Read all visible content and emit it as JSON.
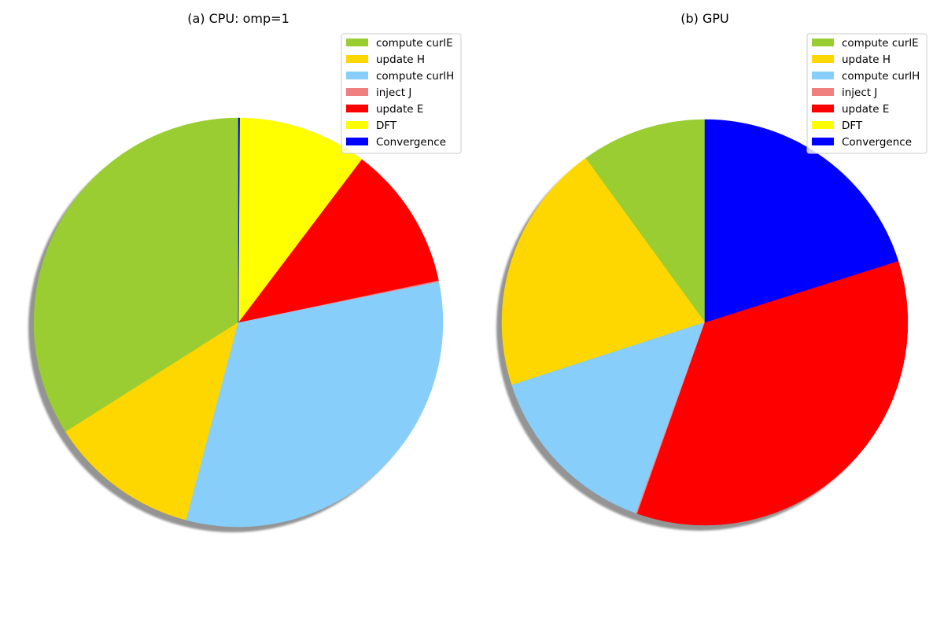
{
  "chart_data": [
    {
      "type": "pie",
      "title": "(a) CPU: omp=1",
      "legend_position": "top-right",
      "shadow": true,
      "categories": [
        "compute curlE",
        "update H",
        "compute curlH",
        "inject J",
        "update E",
        "DFT",
        "Convergence"
      ],
      "colors": [
        "#9ACD32",
        "#FFD700",
        "#87CEFA",
        "#F08080",
        "#FF0000",
        "#FFFF00",
        "#0000FF"
      ],
      "values": [
        34.0,
        11.9,
        32.3,
        0.1,
        11.4,
        10.2,
        0.1
      ]
    },
    {
      "type": "pie",
      "title": "(b) GPU",
      "legend_position": "top-right",
      "shadow": true,
      "categories": [
        "compute curlE",
        "update H",
        "compute curlH",
        "inject J",
        "update E",
        "DFT",
        "Convergence"
      ],
      "colors": [
        "#9ACD32",
        "#FFD700",
        "#87CEFA",
        "#F08080",
        "#FF0000",
        "#FFFF00",
        "#0000FF"
      ],
      "values": [
        10.0,
        20.0,
        14.5,
        0.1,
        35.3,
        0.0,
        20.1
      ]
    }
  ]
}
